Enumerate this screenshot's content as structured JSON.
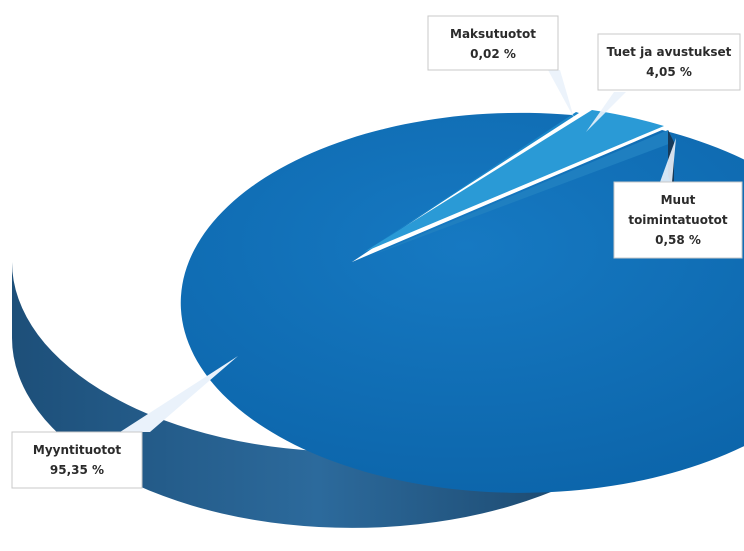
{
  "chart_data": {
    "type": "pie",
    "title": "",
    "series": [
      {
        "slices": [
          {
            "label": "Myyntituotot",
            "value": 95.35,
            "value_label": "95,35 %",
            "color": "#0e6db5"
          },
          {
            "label": "Maksutuotot",
            "value": 0.02,
            "value_label": "0,02 %",
            "color": "#1a86c8"
          },
          {
            "label": "Tuet ja avustukset",
            "value": 4.05,
            "value_label": "4,05 %",
            "color": "#2a9ad6"
          },
          {
            "label": "Muut toimintatuotot",
            "value": 0.58,
            "value_label": "0,58 %",
            "color": "#1f7fc0"
          }
        ]
      }
    ],
    "legend": "none",
    "style": "3d"
  }
}
